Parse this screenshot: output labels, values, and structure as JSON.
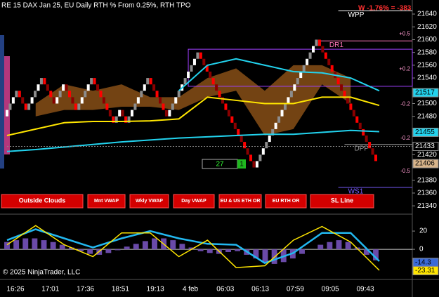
{
  "chart_data": [
    {
      "type": "renko",
      "title": "RE 15 DAX Jan 25, EU Daily RTH % From 0.25%, RTH TPO",
      "headline": "W -1,76% = -383",
      "ylim": [
        21327,
        21662
      ],
      "yticks": [
        21340,
        21360,
        21380,
        21420,
        21480,
        21500,
        21540,
        21560,
        21580,
        21600,
        21620,
        21640
      ],
      "brick_size": 10,
      "up_colors": [
        "#ffffff",
        "#8c8c8c"
      ],
      "down_colors": [
        "#ff0000",
        "#8a0000"
      ],
      "bricks": [
        21490,
        21500,
        21510,
        21520,
        21510,
        21500,
        21490,
        21500,
        21510,
        21520,
        21530,
        21540,
        21530,
        21520,
        21510,
        21500,
        21510,
        21520,
        21530,
        21520,
        21510,
        21500,
        21490,
        21500,
        21510,
        21520,
        21530,
        21540,
        21530,
        21520,
        21510,
        21500,
        21490,
        21480,
        21470,
        21480,
        21490,
        21480,
        21470,
        21480,
        21490,
        21500,
        21510,
        21520,
        21530,
        21540,
        21530,
        21520,
        21510,
        21500,
        21490,
        21480,
        21490,
        21500,
        21510,
        21520,
        21530,
        21540,
        21550,
        21560,
        21570,
        21580,
        21570,
        21560,
        21550,
        21540,
        21530,
        21520,
        21510,
        21500,
        21490,
        21480,
        21470,
        21460,
        21450,
        21440,
        21430,
        21420,
        21410,
        21400,
        21410,
        21420,
        21430,
        21440,
        21450,
        21460,
        21470,
        21480,
        21490,
        21500,
        21510,
        21520,
        21530,
        21540,
        21550,
        21560,
        21570,
        21580,
        21590,
        21600,
        21590,
        21580,
        21570,
        21560,
        21550,
        21540,
        21530,
        21520,
        21510,
        21500,
        21490,
        21480,
        21470,
        21460,
        21450,
        21440,
        21430,
        21420,
        21410
      ],
      "cloud": {
        "color": "#9a5a1a",
        "upper": [
          null,
          21500,
          21530,
          21520,
          21530,
          21510,
          21510,
          21540,
          21555,
          21520,
          21560,
          21560,
          21540,
          null
        ],
        "lower": [
          null,
          21480,
          21490,
          21490,
          21495,
          21495,
          21490,
          21510,
          21520,
          21450,
          21460,
          21530,
          21500,
          null
        ]
      },
      "lines": [
        {
          "color": "#22d3ee",
          "values": [
            21425,
            21428,
            21432,
            21436,
            21440,
            21443,
            21446,
            21448,
            21450,
            21452,
            21452,
            21455,
            21458,
            21456
          ]
        },
        {
          "color": "#22d3ee",
          "values": [
            null,
            null,
            null,
            null,
            null,
            null,
            21520,
            21560,
            21570,
            21560,
            21550,
            21548,
            21540,
            21520
          ]
        },
        {
          "color": "#ffe600",
          "values": [
            21450,
            21460,
            21470,
            21472,
            21472,
            21473,
            21476,
            21510,
            21505,
            21500,
            21500,
            21510,
            21510,
            21497
          ]
        }
      ],
      "levels": [
        {
          "label": "WPP",
          "value": 21645,
          "from": 106,
          "color": "#ffffff"
        },
        {
          "label": "DR1",
          "value": 21598,
          "from": 100,
          "color": "#ff77bb"
        },
        {
          "label": "DPP",
          "value": 21436,
          "from": 108,
          "color": "#9a9a9a"
        },
        {
          "label": "WS1",
          "value": 21369,
          "from": 106,
          "color": "#7a5cff"
        }
      ],
      "box": {
        "top": 21585,
        "bottom": 21527,
        "from": 58,
        "color": "#a040ff"
      },
      "pct_labels": [
        {
          "value": 21609,
          "label": "+0.5"
        },
        {
          "value": 21554,
          "label": "+0.2"
        },
        {
          "value": 21499,
          "label": "-0.2"
        },
        {
          "value": 21446,
          "label": "-0.2"
        },
        {
          "value": 21394,
          "label": "-0.5"
        }
      ],
      "price_tags": [
        {
          "value": 21517,
          "color": "#22d3ee"
        },
        {
          "value": 21455,
          "color": "#22d3ee"
        },
        {
          "value": 21433,
          "color": "#000000"
        },
        {
          "value": 21406,
          "color": "#d8b48a"
        }
      ],
      "counter": [
        27,
        1
      ],
      "x_labels": [
        "16:26",
        "17:01",
        "17:36",
        "18:51",
        "19:13",
        "4 feb",
        "06:03",
        "06:13",
        "07:59",
        "09:05",
        "09:43"
      ]
    },
    {
      "type": "oscillator",
      "ylim": [
        -33,
        37
      ],
      "yticks": [
        0,
        20
      ],
      "histogram_color": "#6a4aa8",
      "histogram": [
        8,
        10,
        12,
        12,
        10,
        8,
        5,
        2,
        -2,
        -5,
        -6,
        -4,
        -1,
        3,
        6,
        9,
        12,
        12,
        10,
        6,
        2,
        -2,
        -4,
        -5,
        -3,
        -2,
        -6,
        -10,
        -14,
        -16,
        -14,
        -10,
        -5,
        0,
        5,
        8,
        10,
        8,
        2,
        -6,
        -12
      ],
      "lines": [
        {
          "color": "#22b8f0",
          "values": [
            10,
            22,
            12,
            2,
            12,
            20,
            12,
            6,
            5,
            -15,
            -4,
            18,
            18,
            -13
          ]
        },
        {
          "color": "#ffe600",
          "values": [
            5,
            26,
            5,
            -8,
            18,
            18,
            -8,
            10,
            -20,
            -18,
            10,
            25,
            8,
            -23
          ]
        }
      ],
      "price_tags": [
        {
          "value": -14.3,
          "color": "#3a6ad8"
        },
        {
          "value": -23.31,
          "color": "#ffe600"
        }
      ]
    }
  ],
  "buttons": [
    "Outside Clouds",
    "Mnt VWAP",
    "Wkly VWAP",
    "Day VWAP",
    "EU & US ETH OR",
    "EU RTH OR",
    "SL Line"
  ],
  "copyright": "© 2025 NinjaTrader, LLC"
}
